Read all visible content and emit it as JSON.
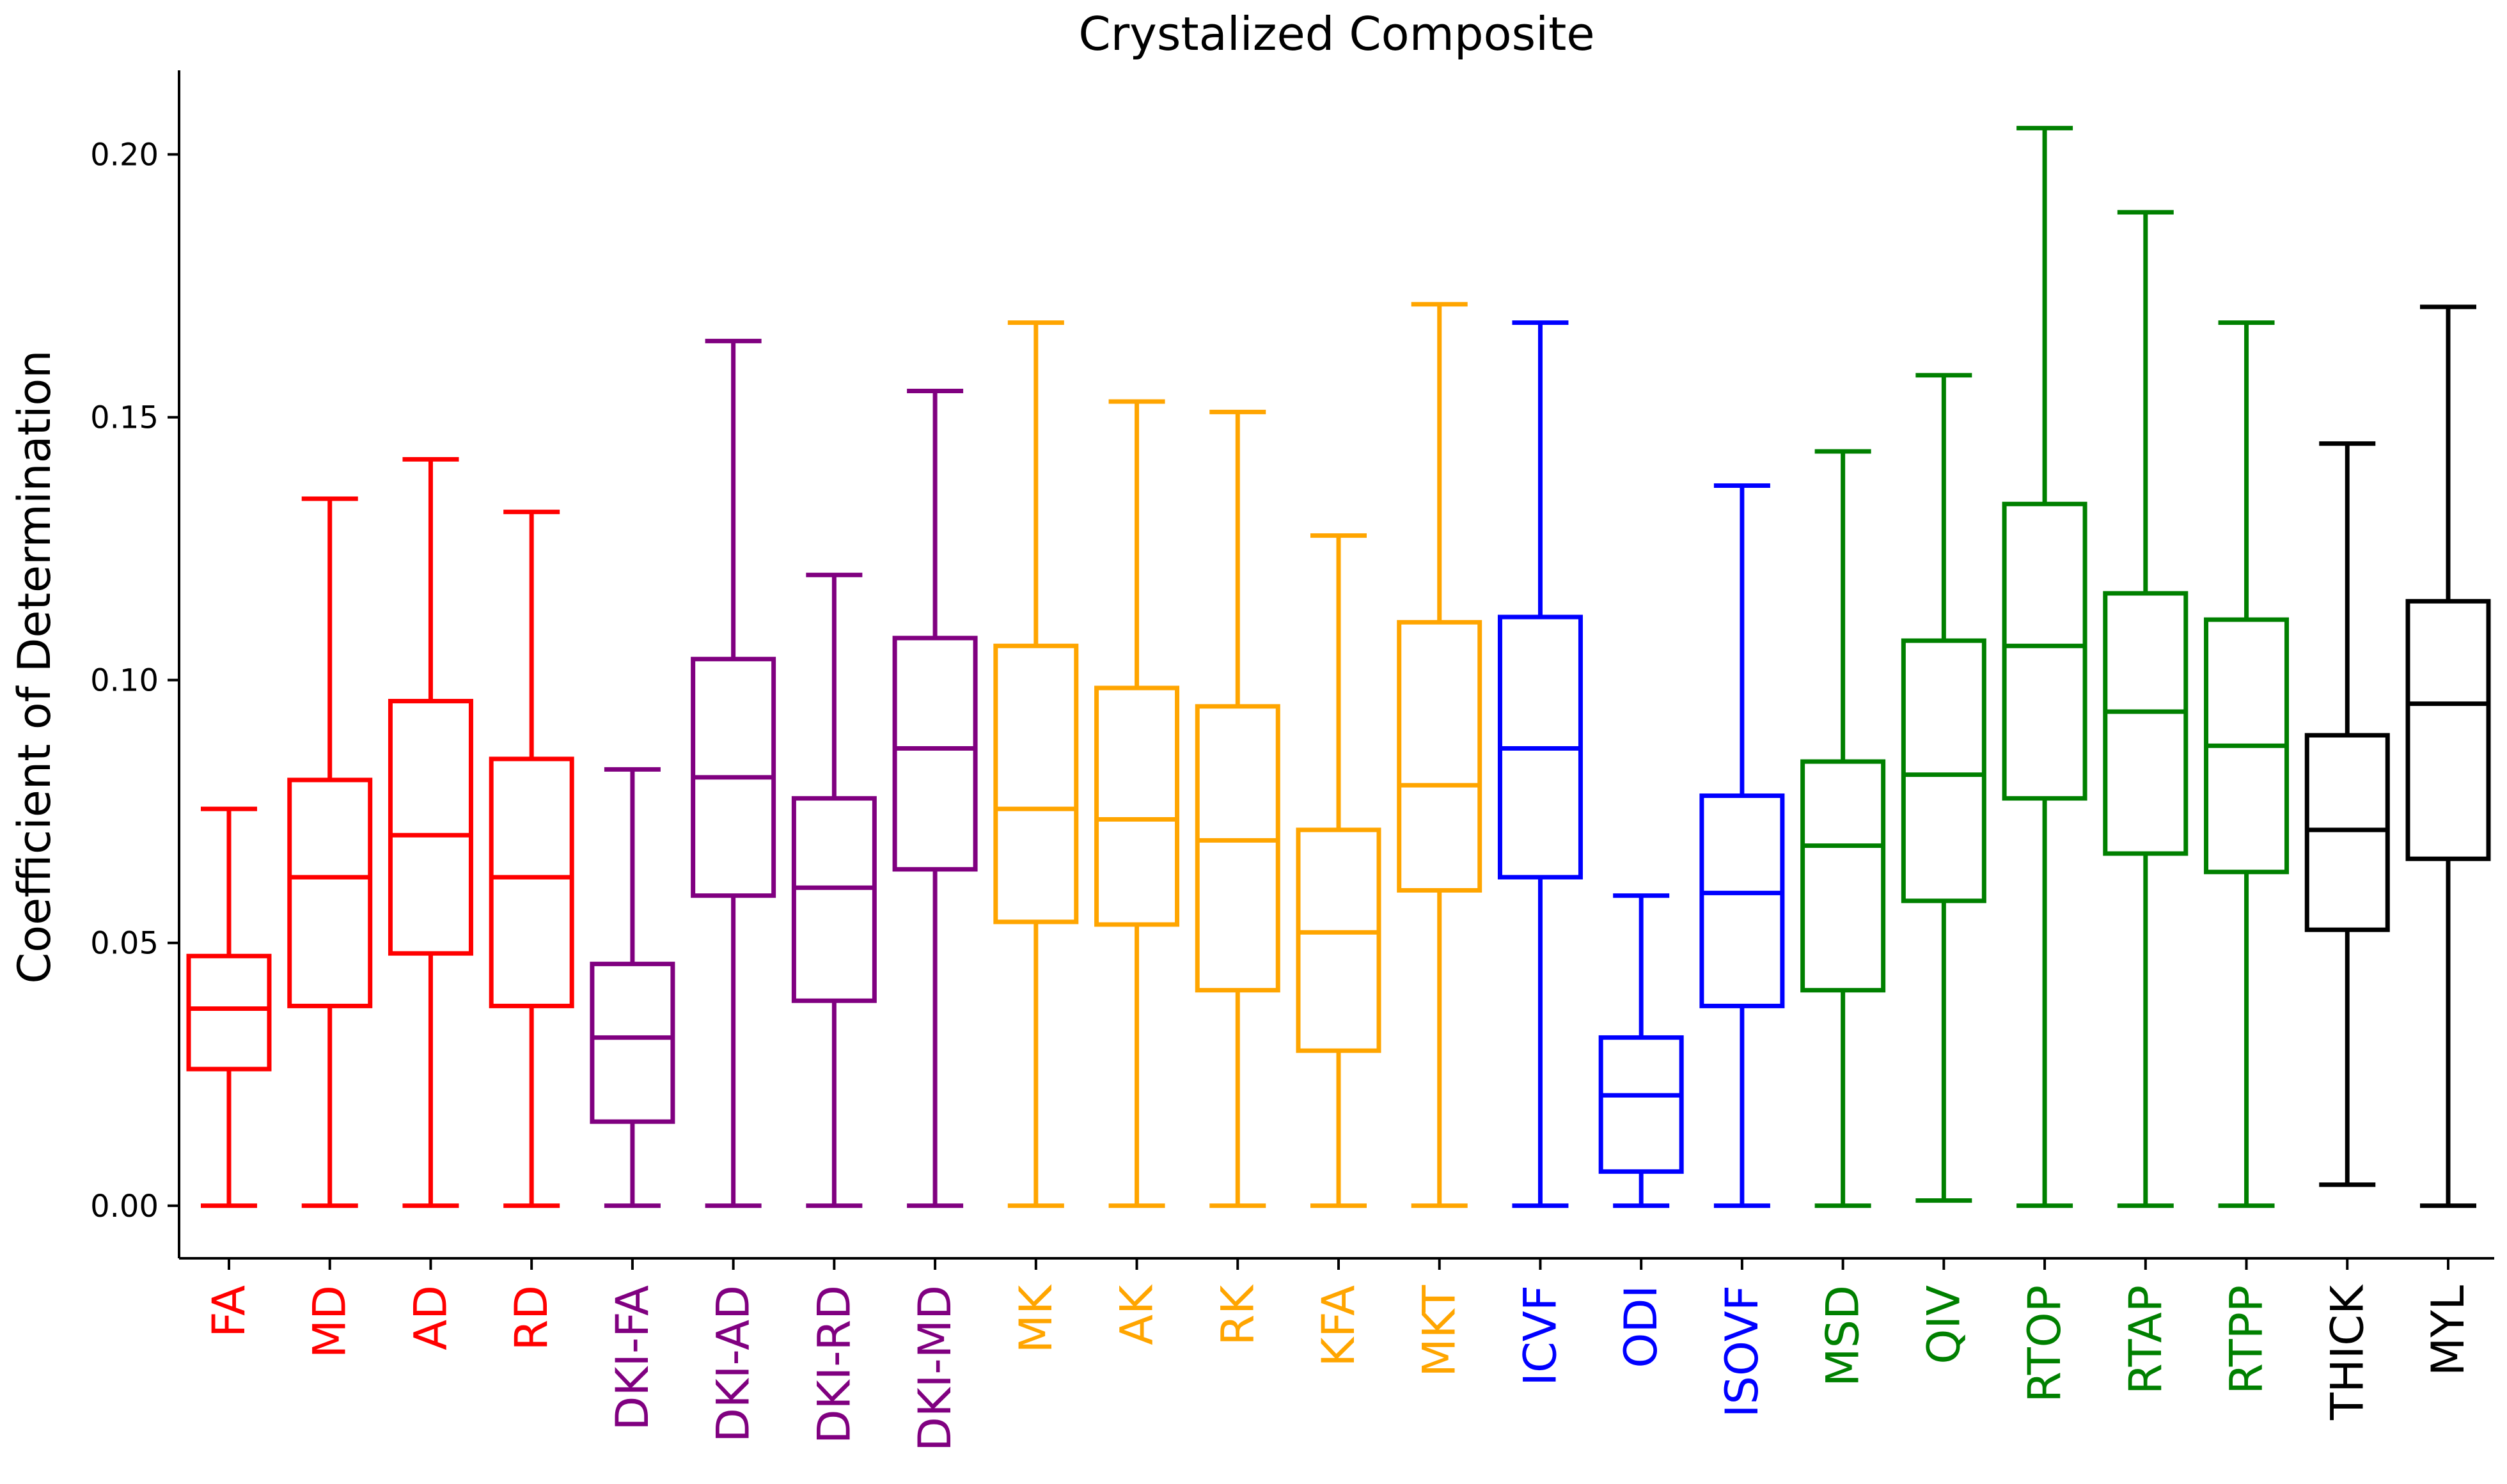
{
  "chart_data": {
    "type": "box",
    "title": "Crystalized Composite",
    "xlabel": "",
    "ylabel": "Coefficient of Determination",
    "ylim": [
      -0.01,
      0.216
    ],
    "yticks": [
      0.0,
      0.05,
      0.1,
      0.15,
      0.2
    ],
    "ytick_labels": [
      "0.00",
      "0.05",
      "0.10",
      "0.15",
      "0.20"
    ],
    "grid": false,
    "legend": "none",
    "colors": {
      "red": "#ff0000",
      "purple": "#800080",
      "orange": "#ffa500",
      "blue": "#0000ff",
      "green": "#008000",
      "black": "#000000"
    },
    "categories": [
      "FA",
      "MD",
      "AD",
      "RD",
      "DKI-FA",
      "DKI-AD",
      "DKI-RD",
      "DKI-MD",
      "MK",
      "AK",
      "RK",
      "KFA",
      "MKT",
      "ICVF",
      "ODI",
      "ISOVF",
      "MSD",
      "QIV",
      "RTOP",
      "RTAP",
      "RTPP",
      "THICK",
      "MYL"
    ],
    "boxes": [
      {
        "label": "FA",
        "color": "#ff0000",
        "min": 0.0,
        "q1": 0.026,
        "median": 0.0375,
        "q3": 0.0475,
        "max": 0.0755
      },
      {
        "label": "MD",
        "color": "#ff0000",
        "min": 0.0,
        "q1": 0.038,
        "median": 0.0625,
        "q3": 0.081,
        "max": 0.1345
      },
      {
        "label": "AD",
        "color": "#ff0000",
        "min": 0.0,
        "q1": 0.048,
        "median": 0.0705,
        "q3": 0.096,
        "max": 0.142
      },
      {
        "label": "RD",
        "color": "#ff0000",
        "min": 0.0,
        "q1": 0.038,
        "median": 0.0625,
        "q3": 0.085,
        "max": 0.132
      },
      {
        "label": "DKI-FA",
        "color": "#800080",
        "min": 0.0,
        "q1": 0.016,
        "median": 0.032,
        "q3": 0.046,
        "max": 0.083
      },
      {
        "label": "DKI-AD",
        "color": "#800080",
        "min": 0.0,
        "q1": 0.059,
        "median": 0.0815,
        "q3": 0.104,
        "max": 0.1645
      },
      {
        "label": "DKI-RD",
        "color": "#800080",
        "min": 0.0,
        "q1": 0.039,
        "median": 0.0605,
        "q3": 0.0775,
        "max": 0.12
      },
      {
        "label": "DKI-MD",
        "color": "#800080",
        "min": 0.0,
        "q1": 0.064,
        "median": 0.087,
        "q3": 0.108,
        "max": 0.155
      },
      {
        "label": "MK",
        "color": "#ffa500",
        "min": 0.0,
        "q1": 0.054,
        "median": 0.0755,
        "q3": 0.1065,
        "max": 0.168
      },
      {
        "label": "AK",
        "color": "#ffa500",
        "min": 0.0,
        "q1": 0.0535,
        "median": 0.0735,
        "q3": 0.0985,
        "max": 0.153
      },
      {
        "label": "RK",
        "color": "#ffa500",
        "min": 0.0,
        "q1": 0.041,
        "median": 0.0695,
        "q3": 0.095,
        "max": 0.151
      },
      {
        "label": "KFA",
        "color": "#ffa500",
        "min": 0.0,
        "q1": 0.0295,
        "median": 0.052,
        "q3": 0.0715,
        "max": 0.1275
      },
      {
        "label": "MKT",
        "color": "#ffa500",
        "min": 0.0,
        "q1": 0.06,
        "median": 0.08,
        "q3": 0.111,
        "max": 0.1715
      },
      {
        "label": "ICVF",
        "color": "#0000ff",
        "min": 0.0,
        "q1": 0.0625,
        "median": 0.087,
        "q3": 0.112,
        "max": 0.168
      },
      {
        "label": "ODI",
        "color": "#0000ff",
        "min": 0.0,
        "q1": 0.0065,
        "median": 0.021,
        "q3": 0.032,
        "max": 0.059
      },
      {
        "label": "ISOVF",
        "color": "#0000ff",
        "min": 0.0,
        "q1": 0.038,
        "median": 0.0595,
        "q3": 0.078,
        "max": 0.137
      },
      {
        "label": "MSD",
        "color": "#008000",
        "min": 0.0,
        "q1": 0.041,
        "median": 0.0685,
        "q3": 0.0845,
        "max": 0.1435
      },
      {
        "label": "QIV",
        "color": "#008000",
        "min": 0.001,
        "q1": 0.058,
        "median": 0.082,
        "q3": 0.1075,
        "max": 0.158
      },
      {
        "label": "RTOP",
        "color": "#008000",
        "min": 0.0,
        "q1": 0.0775,
        "median": 0.1065,
        "q3": 0.1335,
        "max": 0.205
      },
      {
        "label": "RTAP",
        "color": "#008000",
        "min": 0.0,
        "q1": 0.067,
        "median": 0.094,
        "q3": 0.1165,
        "max": 0.189
      },
      {
        "label": "RTPP",
        "color": "#008000",
        "min": 0.0,
        "q1": 0.0635,
        "median": 0.0875,
        "q3": 0.1115,
        "max": 0.168
      },
      {
        "label": "THICK",
        "color": "#000000",
        "min": 0.004,
        "q1": 0.0525,
        "median": 0.0715,
        "q3": 0.0895,
        "max": 0.145
      },
      {
        "label": "MYL",
        "color": "#000000",
        "min": 0.0,
        "q1": 0.066,
        "median": 0.0955,
        "q3": 0.115,
        "max": 0.171
      }
    ]
  }
}
